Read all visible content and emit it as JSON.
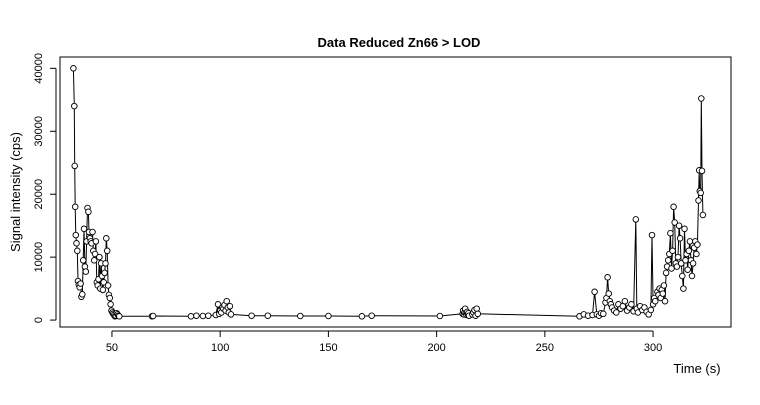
{
  "chart_data": {
    "type": "line",
    "title": "Data Reduced Zn66 > LOD",
    "xlabel": "Time (s)",
    "ylabel": "Signal intensity (cps)",
    "xlim": [
      26,
      336
    ],
    "ylim": [
      -1100,
      41800
    ],
    "x_ticks": [
      50,
      100,
      150,
      200,
      250,
      300
    ],
    "y_ticks": [
      0,
      10000,
      20000,
      30000,
      40000
    ],
    "grid": false,
    "legend": "none",
    "marker": "open-circle",
    "line_color": "#000000",
    "series": [
      {
        "x": [
          32.2,
          32.6,
          32.8,
          33.0,
          33.3,
          33.6,
          34.0,
          34.3,
          34.7,
          35.1,
          35.5,
          35.9,
          36.3,
          36.7,
          37.1,
          37.5,
          37.9,
          38.3,
          38.7,
          39.1,
          39.4,
          39.8,
          40.2,
          40.6,
          41.0,
          41.4,
          41.8,
          42.2,
          42.6,
          43.0,
          43.4,
          43.8,
          44.2,
          44.6,
          45.0,
          45.4,
          45.8,
          46.2,
          46.6,
          47.0,
          47.4,
          47.8,
          48.2,
          48.6,
          49.0,
          49.4,
          49.8,
          50.2,
          50.6,
          51.0,
          51.4,
          51.8,
          52.2,
          52.6,
          53.0,
          53.4,
          68.5,
          69.0,
          86.5,
          89.0,
          92.0,
          94.5,
          98.0,
          99.0,
          99.5,
          100.0,
          100.5,
          101.0,
          101.5,
          102.0,
          102.5,
          103.0,
          103.5,
          104.0,
          104.5,
          105.0,
          114.5,
          122.0,
          137.0,
          150.0,
          165.5,
          170.0,
          201.5,
          212.0,
          212.3,
          212.6,
          212.9,
          213.2,
          213.5,
          213.8,
          214.1,
          214.4,
          214.7,
          215.0,
          216.5,
          217.0,
          217.5,
          218.0,
          218.5,
          219.0,
          266.0,
          268.0,
          270.0,
          272.0,
          273.0,
          274.0,
          275.0,
          276.0,
          277.0,
          278.0,
          278.5,
          279.0,
          279.5,
          280.0,
          280.5,
          281.0,
          282.0,
          283.0,
          284.0,
          285.0,
          286.0,
          287.0,
          288.0,
          289.0,
          290.0,
          291.0,
          292.0,
          292.5,
          293.0,
          294.0,
          295.0,
          296.0,
          297.0,
          298.0,
          299.0,
          299.5,
          300.0,
          300.5,
          301.0,
          302.0,
          302.5,
          303.0,
          303.5,
          304.0,
          304.5,
          305.0,
          305.5,
          306.0,
          306.5,
          307.0,
          307.5,
          308.0,
          308.5,
          309.0,
          309.5,
          310.0,
          310.5,
          311.0,
          311.5,
          312.0,
          312.5,
          313.0,
          313.5,
          314.0,
          314.5,
          315.0,
          315.5,
          316.0,
          316.5,
          317.0,
          317.5,
          318.0,
          318.5,
          319.0,
          319.5,
          320.0,
          320.5,
          321.0,
          321.3,
          321.6,
          322.0,
          322.3,
          322.6,
          323.0
        ],
        "y": [
          40000,
          34000,
          24500,
          18000,
          13500,
          12200,
          11000,
          6200,
          5600,
          5200,
          5800,
          3700,
          4100,
          9500,
          14500,
          8500,
          7700,
          12500,
          17800,
          17200,
          14000,
          13000,
          12500,
          12200,
          14000,
          11000,
          9500,
          10500,
          12500,
          6000,
          5500,
          6500,
          10000,
          5000,
          9000,
          7000,
          4800,
          6000,
          7500,
          9000,
          13000,
          11000,
          5500,
          4000,
          3500,
          2500,
          1500,
          1200,
          1000,
          800,
          600,
          700,
          1100,
          900,
          700,
          600,
          600,
          650,
          600,
          700,
          650,
          700,
          800,
          2500,
          1000,
          1500,
          1200,
          2000,
          1800,
          2400,
          1500,
          3000,
          2000,
          1200,
          2200,
          900,
          700,
          700,
          650,
          650,
          600,
          700,
          650,
          1000,
          1500,
          900,
          1200,
          1800,
          1100,
          800,
          1300,
          900,
          1100,
          700,
          900,
          1200,
          1600,
          700,
          1800,
          1000,
          600,
          900,
          700,
          800,
          4500,
          900,
          700,
          1100,
          1000,
          2800,
          3500,
          6800,
          4200,
          3000,
          2500,
          2000,
          1500,
          1200,
          2500,
          1800,
          2200,
          3000,
          1500,
          2000,
          2500,
          1400,
          16000,
          1800,
          1200,
          2200,
          1600,
          2000,
          1300,
          900,
          1600,
          13500,
          2500,
          3500,
          3000,
          4500,
          4000,
          5000,
          3500,
          4800,
          4200,
          5500,
          3000,
          7500,
          8500,
          9500,
          10500,
          13800,
          8200,
          11000,
          18000,
          15500,
          9000,
          8500,
          10000,
          15000,
          13000,
          9000,
          7000,
          5000,
          14500,
          9500,
          10500,
          8000,
          11000,
          12500,
          9500,
          7000,
          9000,
          11500,
          12500,
          10500,
          12000,
          19000,
          23800,
          20500,
          20200,
          35200,
          23700,
          16700
        ]
      }
    ]
  }
}
